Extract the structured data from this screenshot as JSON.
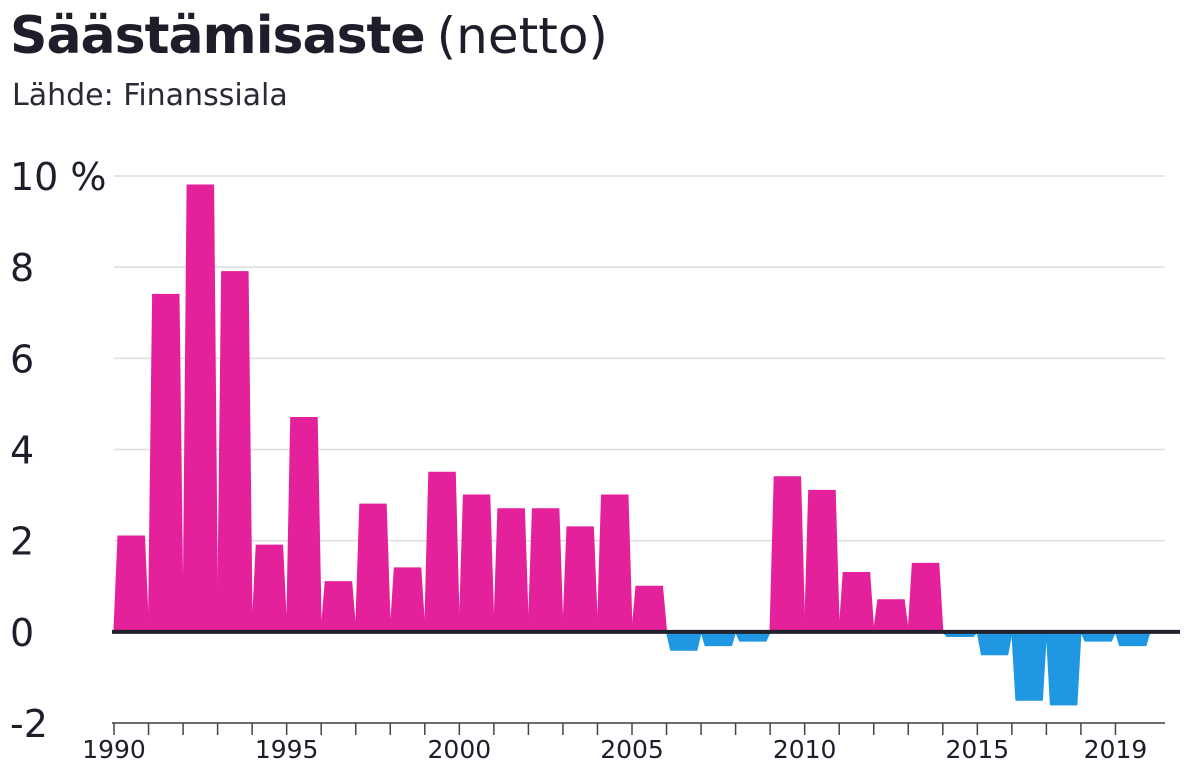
{
  "header": {
    "title_bold": "Säästämisaste",
    "title_suffix": "(netto)",
    "source": "Lähde: Finanssiala"
  },
  "colors": {
    "positive": "#e4219b",
    "negative": "#1f97e3",
    "zero_line": "#22212e",
    "grid": "#dedede",
    "axis": "#444444"
  },
  "chart_data": {
    "type": "area",
    "title": "Säästämisaste (netto)",
    "subtitle": "Lähde: Finanssiala",
    "xlabel": "",
    "ylabel": "",
    "unit": "%",
    "ylim": [
      -2,
      10
    ],
    "xlim": [
      1990,
      2020
    ],
    "grid": true,
    "legend": "none",
    "step": true,
    "yticks": [
      {
        "value": 10,
        "label": "10 %"
      },
      {
        "value": 8,
        "label": "8"
      },
      {
        "value": 6,
        "label": "6"
      },
      {
        "value": 4,
        "label": "4"
      },
      {
        "value": 2,
        "label": "2"
      },
      {
        "value": 0,
        "label": "0"
      },
      {
        "value": -2,
        "label": "-2"
      }
    ],
    "xticks": [
      {
        "value": 1990,
        "label": "1990"
      },
      {
        "value": 1995,
        "label": "1995"
      },
      {
        "value": 2000,
        "label": "2000"
      },
      {
        "value": 2005,
        "label": "2005"
      },
      {
        "value": 2010,
        "label": "2010"
      },
      {
        "value": 2015,
        "label": "2015"
      },
      {
        "value": 2019,
        "label": "2019"
      }
    ],
    "years": [
      1990,
      1991,
      1992,
      1993,
      1994,
      1995,
      1996,
      1997,
      1998,
      1999,
      2000,
      2001,
      2002,
      2003,
      2004,
      2005,
      2006,
      2007,
      2008,
      2009,
      2010,
      2011,
      2012,
      2013,
      2014,
      2015,
      2016,
      2017,
      2018,
      2019
    ],
    "values": [
      2.1,
      7.4,
      9.8,
      7.9,
      1.9,
      4.7,
      1.1,
      2.8,
      1.4,
      3.5,
      3.0,
      2.7,
      2.7,
      2.3,
      3.0,
      1.0,
      -0.4,
      -0.3,
      -0.2,
      3.4,
      3.1,
      1.3,
      0.7,
      1.5,
      -0.1,
      -0.5,
      -1.5,
      -1.6,
      -0.2,
      -0.3
    ]
  }
}
